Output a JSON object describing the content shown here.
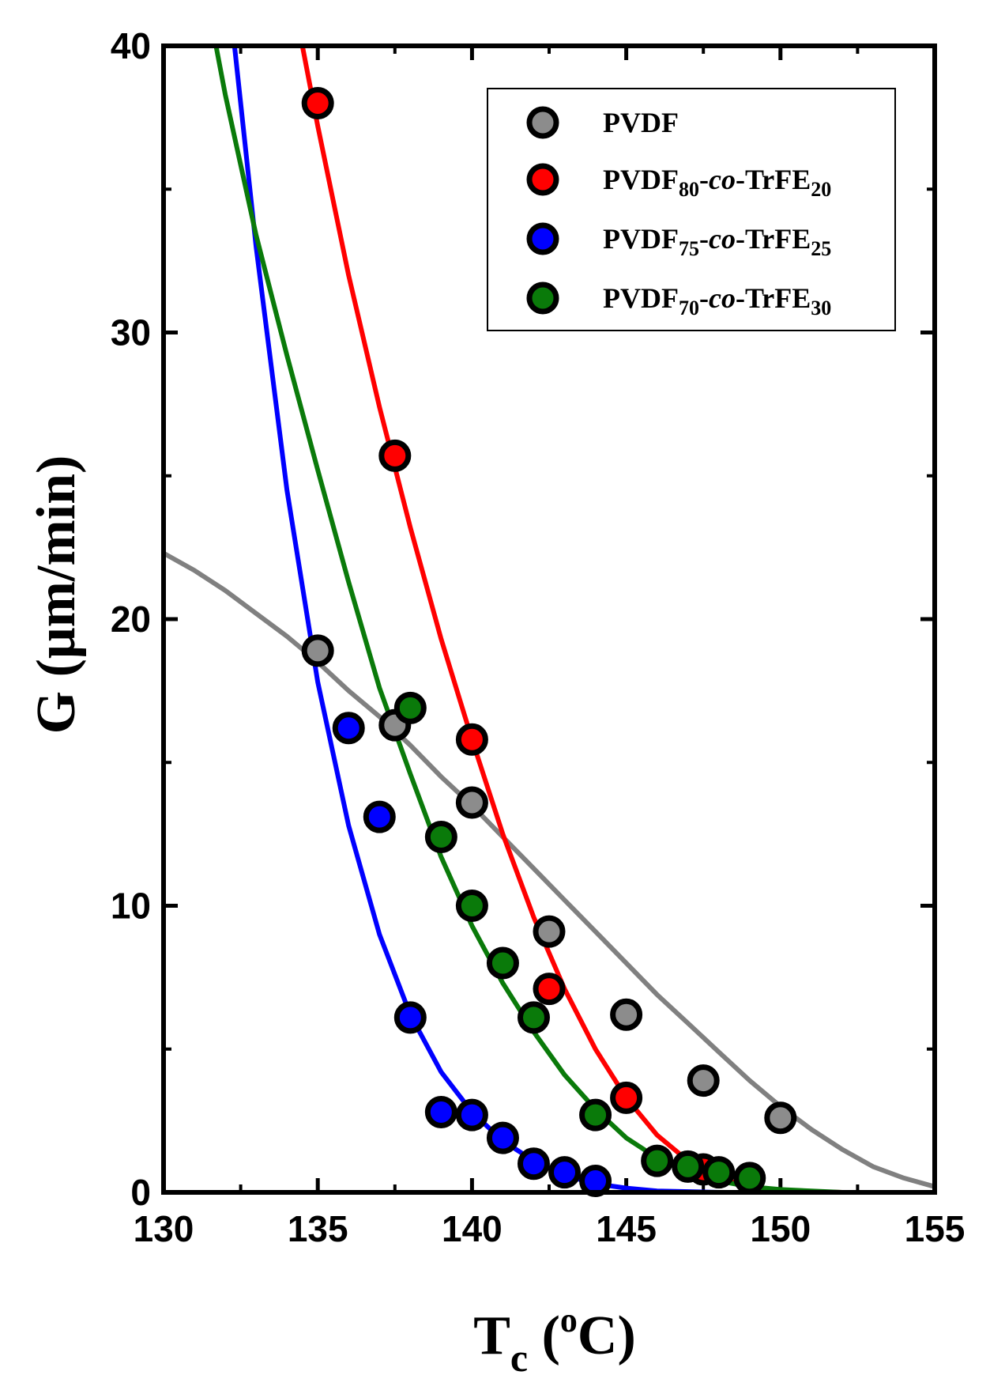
{
  "chart_data": {
    "type": "scatter",
    "title": "",
    "xlabel": {
      "main": "T",
      "sub": "c",
      "open": " (",
      "sup": "o",
      "close": "C)"
    },
    "ylabel": "G (μm/min)",
    "xlim": [
      130,
      155
    ],
    "ylim": [
      0,
      40
    ],
    "xticks": [
      130,
      135,
      140,
      145,
      150,
      155
    ],
    "yticks": [
      0,
      10,
      20,
      30,
      40
    ],
    "xticks_minor": [
      132.5,
      137.5,
      142.5,
      147.5,
      152.5
    ],
    "yticks_minor": [
      5,
      15,
      25,
      35
    ],
    "legend_position": "top-right",
    "series": [
      {
        "name": "PVDF",
        "legend": {
          "a": "PVDF",
          "sub1": "",
          "b": "",
          "italic": "",
          "c": "",
          "sub2": ""
        },
        "color": "#8c8c8c",
        "line_color": "#808080",
        "points": [
          [
            135,
            18.9
          ],
          [
            137.5,
            16.3
          ],
          [
            140,
            13.6
          ],
          [
            142.5,
            9.1
          ],
          [
            145,
            6.2
          ],
          [
            147.5,
            3.9
          ],
          [
            150,
            2.6
          ]
        ],
        "fit": [
          [
            130,
            22.3
          ],
          [
            131,
            21.7
          ],
          [
            132,
            21.0
          ],
          [
            133,
            20.2
          ],
          [
            134,
            19.4
          ],
          [
            135,
            18.5
          ],
          [
            136,
            17.5
          ],
          [
            137,
            16.6
          ],
          [
            138,
            15.6
          ],
          [
            139,
            14.5
          ],
          [
            140,
            13.5
          ],
          [
            141,
            12.4
          ],
          [
            142,
            11.3
          ],
          [
            143,
            10.2
          ],
          [
            144,
            9.1
          ],
          [
            145,
            8.0
          ],
          [
            146,
            6.9
          ],
          [
            147,
            5.9
          ],
          [
            148,
            4.9
          ],
          [
            149,
            3.9
          ],
          [
            150,
            3.0
          ],
          [
            151,
            2.2
          ],
          [
            152,
            1.5
          ],
          [
            153,
            0.9
          ],
          [
            154,
            0.5
          ],
          [
            155,
            0.2
          ]
        ]
      },
      {
        "name": "PVDF80-co-TrFE20",
        "legend": {
          "a": "PVDF",
          "sub1": "80",
          "b": "-",
          "italic": "co",
          "c": "-TrFE",
          "sub2": "20"
        },
        "color": "#ff0000",
        "line_color": "#ff0000",
        "points": [
          [
            135,
            38.0
          ],
          [
            137.5,
            25.7
          ],
          [
            140,
            15.8
          ],
          [
            142.5,
            7.1
          ],
          [
            145,
            3.3
          ],
          [
            147.5,
            0.8
          ]
        ],
        "fit": [
          [
            134.5,
            40.0
          ],
          [
            135,
            37.2
          ],
          [
            136,
            32.0
          ],
          [
            137,
            27.4
          ],
          [
            138,
            23.2
          ],
          [
            139,
            19.3
          ],
          [
            140,
            15.8
          ],
          [
            141,
            12.5
          ],
          [
            142,
            9.6
          ],
          [
            143,
            7.1
          ],
          [
            144,
            5.0
          ],
          [
            145,
            3.3
          ],
          [
            146,
            2.0
          ],
          [
            147,
            1.1
          ],
          [
            148,
            0.5
          ],
          [
            149,
            0.2
          ],
          [
            150,
            0.05
          ],
          [
            152,
            0.0
          ],
          [
            155,
            0.0
          ]
        ]
      },
      {
        "name": "PVDF75-co-TrFE25",
        "legend": {
          "a": "PVDF",
          "sub1": "75",
          "b": "-",
          "italic": "co",
          "c": "-TrFE",
          "sub2": "25"
        },
        "color": "#0000ff",
        "line_color": "#0000ff",
        "points": [
          [
            136,
            16.2
          ],
          [
            137,
            13.1
          ],
          [
            138,
            6.1
          ],
          [
            139,
            2.8
          ],
          [
            140,
            2.7
          ],
          [
            141,
            1.9
          ],
          [
            142,
            1.0
          ],
          [
            143,
            0.7
          ],
          [
            144,
            0.4
          ]
        ],
        "fit": [
          [
            132.3,
            40.0
          ],
          [
            133,
            33.0
          ],
          [
            134,
            24.5
          ],
          [
            135,
            17.8
          ],
          [
            136,
            12.8
          ],
          [
            137,
            9.0
          ],
          [
            138,
            6.2
          ],
          [
            139,
            4.2
          ],
          [
            140,
            2.8
          ],
          [
            141,
            1.8
          ],
          [
            142,
            1.1
          ],
          [
            143,
            0.6
          ],
          [
            144,
            0.3
          ],
          [
            145,
            0.15
          ],
          [
            146,
            0.05
          ],
          [
            148,
            0.0
          ],
          [
            155,
            0.0
          ]
        ]
      },
      {
        "name": "PVDF70-co-TrFE30",
        "legend": {
          "a": "PVDF",
          "sub1": "70",
          "b": "-",
          "italic": "co",
          "c": "-TrFE",
          "sub2": "30"
        },
        "color": "#0a7a0a",
        "line_color": "#0a7a0a",
        "points": [
          [
            138,
            16.9
          ],
          [
            139,
            12.4
          ],
          [
            140,
            10.0
          ],
          [
            141,
            8.0
          ],
          [
            142,
            6.1
          ],
          [
            144,
            2.7
          ],
          [
            146,
            1.1
          ],
          [
            147,
            0.9
          ],
          [
            148,
            0.7
          ],
          [
            149,
            0.5
          ]
        ],
        "fit": [
          [
            131.7,
            40.0
          ],
          [
            132,
            38.3
          ],
          [
            133,
            33.4
          ],
          [
            134,
            29.2
          ],
          [
            135,
            25.2
          ],
          [
            136,
            21.3
          ],
          [
            137,
            17.6
          ],
          [
            138,
            14.6
          ],
          [
            139,
            11.7
          ],
          [
            140,
            9.3
          ],
          [
            141,
            7.3
          ],
          [
            142,
            5.6
          ],
          [
            143,
            4.1
          ],
          [
            144,
            2.9
          ],
          [
            145,
            1.9
          ],
          [
            146,
            1.2
          ],
          [
            147,
            0.7
          ],
          [
            148,
            0.4
          ],
          [
            149,
            0.2
          ],
          [
            150,
            0.1
          ],
          [
            152,
            0.0
          ],
          [
            155,
            0.0
          ]
        ]
      }
    ]
  }
}
